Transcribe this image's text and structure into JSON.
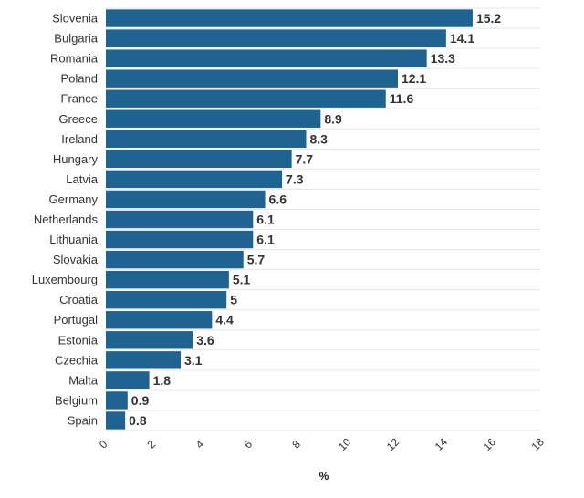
{
  "chart_data": {
    "type": "bar",
    "orientation": "horizontal",
    "title": "",
    "xlabel": "%",
    "ylabel": "",
    "xlim": [
      0,
      18
    ],
    "xticks": [
      0,
      2,
      4,
      6,
      8,
      10,
      12,
      14,
      16,
      18
    ],
    "grid": true,
    "categories": [
      "Slovenia",
      "Bulgaria",
      "Romania",
      "Poland",
      "France",
      "Greece",
      "Ireland",
      "Hungary",
      "Latvia",
      "Germany",
      "Netherlands",
      "Lithuania",
      "Slovakia",
      "Luxembourg",
      "Croatia",
      "Portugal",
      "Estonia",
      "Czechia",
      "Malta",
      "Belgium",
      "Spain"
    ],
    "values": [
      15.2,
      14.1,
      13.3,
      12.1,
      11.6,
      8.9,
      8.3,
      7.7,
      7.3,
      6.6,
      6.1,
      6.1,
      5.7,
      5.1,
      5,
      4.4,
      3.6,
      3.1,
      1.8,
      0.9,
      0.8
    ],
    "value_labels": [
      "15.2",
      "14.1",
      "13.3",
      "12.1",
      "11.6",
      "8.9",
      "8.3",
      "7.7",
      "7.3",
      "6.6",
      "6.1",
      "6.1",
      "5.7",
      "5.1",
      "5",
      "4.4",
      "3.6",
      "3.1",
      "1.8",
      "0.9",
      "0.8"
    ],
    "colors": {
      "bar": "#1f6391",
      "grid": "#e6e6e6",
      "text": "#333333"
    }
  }
}
